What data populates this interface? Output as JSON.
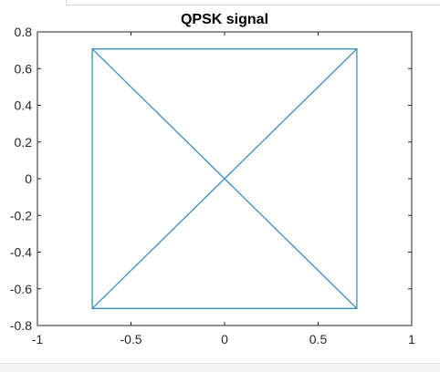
{
  "chart_data": {
    "type": "line",
    "title": "QPSK signal",
    "xlabel": "",
    "ylabel": "",
    "xlim": [
      -1,
      1
    ],
    "ylim": [
      -0.8,
      0.8
    ],
    "xticks": [
      -1,
      -0.5,
      0,
      0.5,
      1
    ],
    "xtick_labels": [
      "-1",
      "-0.5",
      "0",
      "0.5",
      "1"
    ],
    "yticks": [
      0.8,
      0.6,
      0.4,
      0.2,
      0,
      -0.2,
      -0.4,
      -0.6,
      -0.8
    ],
    "ytick_labels": [
      "0.8",
      "0.6",
      "0.4",
      "0.2",
      "0",
      "-0.2",
      "-0.4",
      "-0.6",
      "-0.8"
    ],
    "grid": false,
    "legend": "none",
    "series_color": "#3a8dbf",
    "series": [
      {
        "x": [
          0.707,
          0.707,
          -0.707,
          -0.707,
          0.707,
          -0.707,
          0.707,
          -0.707
        ],
        "y": [
          0.707,
          -0.707,
          -0.707,
          0.707,
          0.707,
          -0.707,
          -0.707,
          0.707
        ]
      }
    ]
  }
}
